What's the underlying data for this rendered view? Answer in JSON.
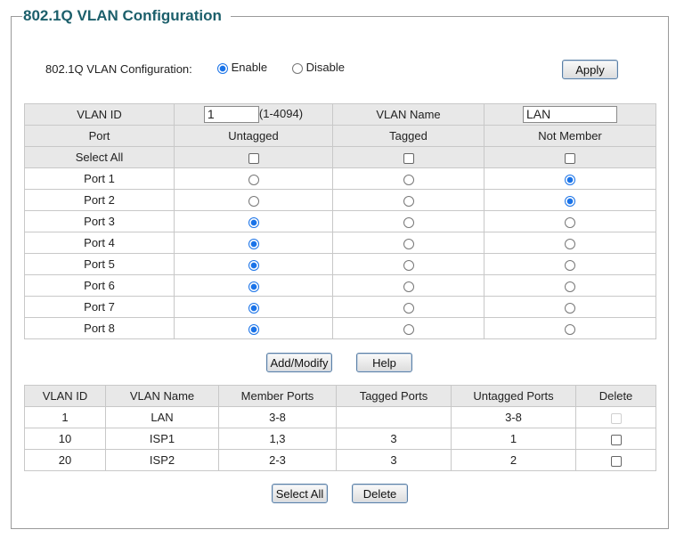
{
  "title": "802.1Q VLAN Configuration",
  "config": {
    "label": "802.1Q VLAN Configuration:",
    "enable": "Enable",
    "disable": "Disable",
    "selected": "Enable",
    "apply": "Apply"
  },
  "form": {
    "vlan_id_label": "VLAN ID",
    "vlan_id_value": "1",
    "vlan_id_range": "(1-4094)",
    "vlan_name_label": "VLAN Name",
    "vlan_name_value": "LAN",
    "headers": [
      "Port",
      "Untagged",
      "Tagged",
      "Not Member"
    ],
    "select_all": "Select All",
    "ports": [
      {
        "name": "Port 1",
        "mode": "Not Member"
      },
      {
        "name": "Port 2",
        "mode": "Not Member"
      },
      {
        "name": "Port 3",
        "mode": "Untagged"
      },
      {
        "name": "Port 4",
        "mode": "Untagged"
      },
      {
        "name": "Port 5",
        "mode": "Untagged"
      },
      {
        "name": "Port 6",
        "mode": "Untagged"
      },
      {
        "name": "Port 7",
        "mode": "Untagged"
      },
      {
        "name": "Port 8",
        "mode": "Untagged"
      }
    ],
    "add_modify": "Add/Modify",
    "help": "Help"
  },
  "vlan_table": {
    "headers": [
      "VLAN ID",
      "VLAN Name",
      "Member Ports",
      "Tagged Ports",
      "Untagged Ports",
      "Delete"
    ],
    "rows": [
      {
        "id": "1",
        "name": "LAN",
        "member": "3-8",
        "tagged": "",
        "untagged": "3-8",
        "delete_disabled": true
      },
      {
        "id": "10",
        "name": "ISP1",
        "member": "1,3",
        "tagged": "3",
        "untagged": "1",
        "delete_disabled": false
      },
      {
        "id": "20",
        "name": "ISP2",
        "member": "2-3",
        "tagged": "3",
        "untagged": "2",
        "delete_disabled": false
      }
    ],
    "select_all": "Select All",
    "delete": "Delete"
  },
  "colors": {
    "title": "#1c5f6b",
    "header_bg": "#e8e8e8",
    "radio_selected": "#1a73e8"
  }
}
